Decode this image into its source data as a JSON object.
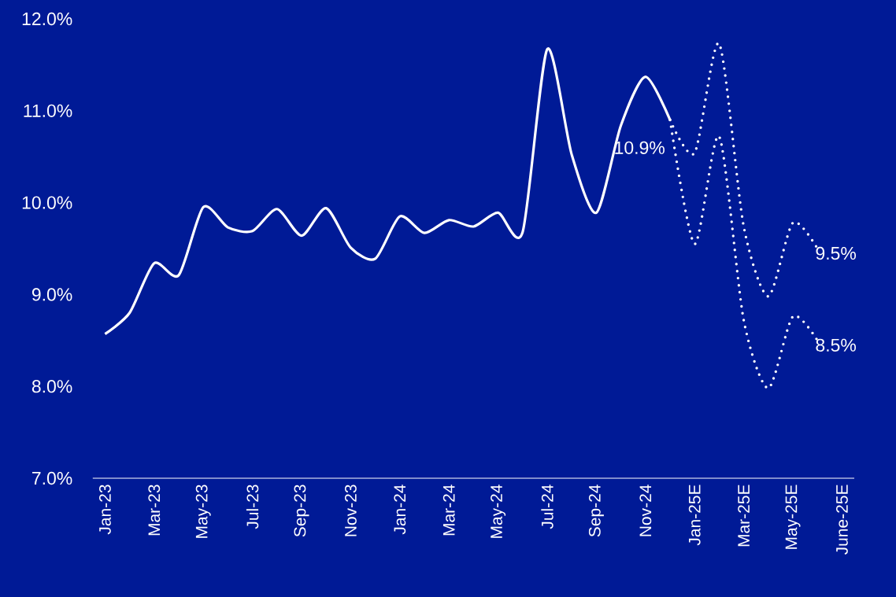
{
  "chart_data": {
    "type": "line",
    "categories": [
      "Jan-23",
      null,
      "Mar-23",
      null,
      "May-23",
      null,
      "Jul-23",
      null,
      "Sep-23",
      null,
      "Nov-23",
      null,
      "Jan-24",
      null,
      "Mar-24",
      null,
      "May-24",
      null,
      "Jul-24",
      null,
      "Sep-24",
      null,
      "Nov-24",
      null,
      "Jan-25E",
      null,
      "Mar-25E",
      null,
      "May-25E",
      null,
      "June-25E"
    ],
    "series": [
      {
        "color": "#ffffff",
        "line_style": "solid",
        "values": [
          8.57,
          8.8,
          9.34,
          9.21,
          9.95,
          9.73,
          9.69,
          9.93,
          9.64,
          9.94,
          9.51,
          9.39,
          9.85,
          9.67,
          9.81,
          9.74,
          9.89,
          9.68,
          11.67,
          10.52,
          9.89,
          10.84,
          11.37,
          10.9,
          null,
          null,
          null,
          null,
          null,
          null,
          null
        ],
        "value_labels": [
          null,
          null,
          null,
          null,
          null,
          null,
          null,
          null,
          null,
          null,
          null,
          null,
          null,
          null,
          null,
          null,
          null,
          null,
          null,
          null,
          null,
          null,
          null,
          "10.9%",
          null,
          null,
          null,
          null,
          null,
          null,
          null
        ]
      },
      {
        "color": "#ffffff",
        "line_style": "dotted",
        "values": [
          null,
          null,
          null,
          null,
          null,
          null,
          null,
          null,
          null,
          null,
          null,
          null,
          null,
          null,
          null,
          null,
          null,
          null,
          null,
          null,
          null,
          null,
          null,
          10.9,
          10.54,
          11.73,
          9.74,
          8.98,
          9.78,
          9.5,
          null
        ],
        "value_labels": [
          null,
          null,
          null,
          null,
          null,
          null,
          null,
          null,
          null,
          null,
          null,
          null,
          null,
          null,
          null,
          null,
          null,
          null,
          null,
          null,
          null,
          null,
          null,
          null,
          null,
          null,
          null,
          null,
          null,
          "9.5%",
          null
        ]
      },
      {
        "color": "#ffffff",
        "line_style": "dotted",
        "values": [
          null,
          null,
          null,
          null,
          null,
          null,
          null,
          null,
          null,
          null,
          null,
          null,
          null,
          null,
          null,
          null,
          null,
          null,
          null,
          null,
          null,
          null,
          null,
          10.9,
          9.55,
          10.72,
          8.72,
          7.98,
          8.76,
          8.5,
          null
        ],
        "value_labels": [
          null,
          null,
          null,
          null,
          null,
          null,
          null,
          null,
          null,
          null,
          null,
          null,
          null,
          null,
          null,
          null,
          null,
          null,
          null,
          null,
          null,
          null,
          null,
          null,
          null,
          null,
          null,
          null,
          null,
          "8.5%",
          null
        ]
      }
    ],
    "ylim": [
      7,
      12
    ],
    "yticks": [
      {
        "value": 7,
        "label": "7.0%"
      },
      {
        "value": 8,
        "label": "8.0%"
      },
      {
        "value": 9,
        "label": "9.0%"
      },
      {
        "value": 10,
        "label": "10.0%"
      },
      {
        "value": 11,
        "label": "11.0%"
      },
      {
        "value": 12,
        "label": "12.0%"
      }
    ],
    "grid": false,
    "legend": false,
    "marker": "none"
  }
}
